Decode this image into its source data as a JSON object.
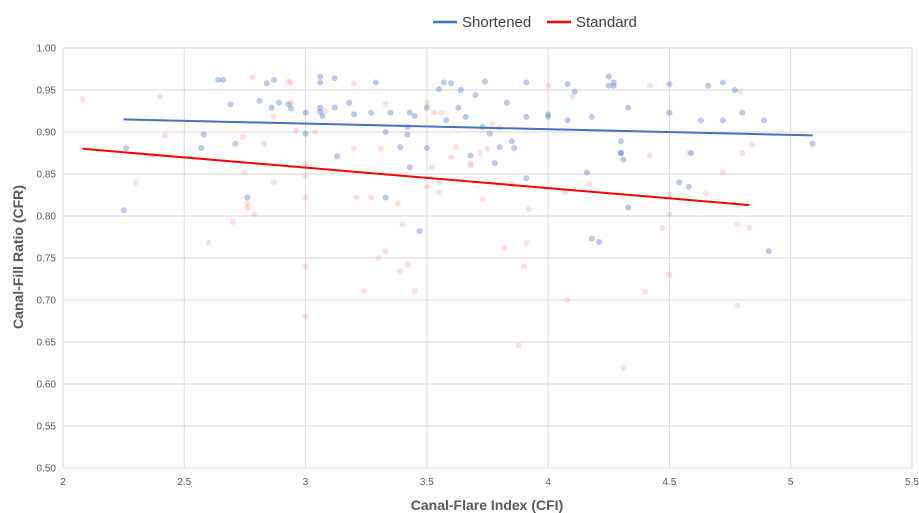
{
  "chart_data": {
    "type": "scatter",
    "title": "",
    "xlabel": "Canal-Flare Index (CFI)",
    "ylabel": "Canal-Fill Ratio (CFR)",
    "xlim": [
      2,
      5.5
    ],
    "ylim": [
      0.5,
      1.0
    ],
    "x_ticks": [
      "2",
      "2.5",
      "3",
      "3.5",
      "4",
      "4.5",
      "5",
      "5.5"
    ],
    "y_ticks": [
      "0.50",
      "0.55",
      "0.60",
      "0.65",
      "0.70",
      "0.75",
      "0.80",
      "0.85",
      "0.90",
      "0.95",
      "1.00"
    ],
    "grid": "vertical-and-horizontal",
    "legend_position": "top-center",
    "series": [
      {
        "name": "Shortened",
        "color": "#4472C4",
        "trendline": {
          "x": [
            2.25,
            5.09
          ],
          "y": [
            0.915,
            0.896
          ]
        },
        "points": [
          [
            2.25,
            0.807
          ],
          [
            2.26,
            0.881
          ],
          [
            2.57,
            0.881
          ],
          [
            2.58,
            0.897
          ],
          [
            2.64,
            0.962
          ],
          [
            2.66,
            0.962
          ],
          [
            2.69,
            0.933
          ],
          [
            2.71,
            0.886
          ],
          [
            2.76,
            0.822
          ],
          [
            2.81,
            0.937
          ],
          [
            2.84,
            0.958
          ],
          [
            2.87,
            0.962
          ],
          [
            2.86,
            0.929
          ],
          [
            2.89,
            0.935
          ],
          [
            2.93,
            0.933
          ],
          [
            2.94,
            0.928
          ],
          [
            3.0,
            0.923
          ],
          [
            3.0,
            0.898
          ],
          [
            3.06,
            0.966
          ],
          [
            3.06,
            0.959
          ],
          [
            3.06,
            0.929
          ],
          [
            3.06,
            0.924
          ],
          [
            3.07,
            0.919
          ],
          [
            3.12,
            0.964
          ],
          [
            3.12,
            0.929
          ],
          [
            3.13,
            0.871
          ],
          [
            3.18,
            0.935
          ],
          [
            3.2,
            0.921
          ],
          [
            3.27,
            0.923
          ],
          [
            3.29,
            0.959
          ],
          [
            3.33,
            0.9
          ],
          [
            3.33,
            0.822
          ],
          [
            3.35,
            0.923
          ],
          [
            3.39,
            0.882
          ],
          [
            3.42,
            0.906
          ],
          [
            3.42,
            0.897
          ],
          [
            3.43,
            0.858
          ],
          [
            3.43,
            0.923
          ],
          [
            3.45,
            0.919
          ],
          [
            3.47,
            0.782
          ],
          [
            3.5,
            0.929
          ],
          [
            3.5,
            0.881
          ],
          [
            3.55,
            0.951
          ],
          [
            3.57,
            0.959
          ],
          [
            3.58,
            0.914
          ],
          [
            3.6,
            0.958
          ],
          [
            3.63,
            0.929
          ],
          [
            3.64,
            0.95
          ],
          [
            3.66,
            0.918
          ],
          [
            3.68,
            0.872
          ],
          [
            3.7,
            0.944
          ],
          [
            3.74,
            0.96
          ],
          [
            3.73,
            0.906
          ],
          [
            3.76,
            0.898
          ],
          [
            3.78,
            0.863
          ],
          [
            3.8,
            0.882
          ],
          [
            3.83,
            0.935
          ],
          [
            3.85,
            0.889
          ],
          [
            3.86,
            0.881
          ],
          [
            3.91,
            0.959
          ],
          [
            3.91,
            0.918
          ],
          [
            3.91,
            0.845
          ],
          [
            4.0,
            0.921
          ],
          [
            4.0,
            0.918
          ],
          [
            4.08,
            0.957
          ],
          [
            4.08,
            0.914
          ],
          [
            4.11,
            0.948
          ],
          [
            4.16,
            0.852
          ],
          [
            4.18,
            0.918
          ],
          [
            4.18,
            0.773
          ],
          [
            4.21,
            0.769
          ],
          [
            4.25,
            0.966
          ],
          [
            4.25,
            0.955
          ],
          [
            4.27,
            0.959
          ],
          [
            4.27,
            0.955
          ],
          [
            4.3,
            0.889
          ],
          [
            4.3,
            0.875
          ],
          [
            4.3,
            0.875
          ],
          [
            4.31,
            0.867
          ],
          [
            4.33,
            0.929
          ],
          [
            4.33,
            0.81
          ],
          [
            4.5,
            0.957
          ],
          [
            4.5,
            0.923
          ],
          [
            4.54,
            0.84
          ],
          [
            4.58,
            0.835
          ],
          [
            4.59,
            0.875
          ],
          [
            4.63,
            0.914
          ],
          [
            4.66,
            0.955
          ],
          [
            4.72,
            0.959
          ],
          [
            4.72,
            0.914
          ],
          [
            4.77,
            0.95
          ],
          [
            4.8,
            0.923
          ],
          [
            4.89,
            0.914
          ],
          [
            4.91,
            0.758
          ],
          [
            5.09,
            0.886
          ]
        ]
      },
      {
        "name": "Standard",
        "color": "#FF0000",
        "trendline": {
          "x": [
            2.08,
            4.83
          ],
          "y": [
            0.88,
            0.813
          ]
        },
        "points": [
          [
            2.08,
            0.939
          ],
          [
            2.3,
            0.84
          ],
          [
            2.37,
            0.872
          ],
          [
            2.4,
            0.942
          ],
          [
            2.42,
            0.896
          ],
          [
            2.6,
            0.768
          ],
          [
            2.7,
            0.793
          ],
          [
            2.74,
            0.894
          ],
          [
            2.75,
            0.852
          ],
          [
            2.76,
            0.81
          ],
          [
            2.76,
            0.815
          ],
          [
            2.78,
            0.965
          ],
          [
            2.79,
            0.802
          ],
          [
            2.83,
            0.886
          ],
          [
            2.87,
            0.918
          ],
          [
            2.87,
            0.84
          ],
          [
            2.93,
            0.96
          ],
          [
            2.94,
            0.958
          ],
          [
            2.94,
            0.935
          ],
          [
            2.96,
            0.902
          ],
          [
            3.0,
            0.862
          ],
          [
            3.0,
            0.848
          ],
          [
            3.0,
            0.822
          ],
          [
            3.0,
            0.74
          ],
          [
            3.0,
            0.68
          ],
          [
            3.04,
            0.9
          ],
          [
            3.08,
            0.925
          ],
          [
            3.2,
            0.958
          ],
          [
            3.2,
            0.88
          ],
          [
            3.21,
            0.822
          ],
          [
            3.24,
            0.711
          ],
          [
            3.27,
            0.822
          ],
          [
            3.3,
            0.75
          ],
          [
            3.31,
            0.88
          ],
          [
            3.33,
            0.934
          ],
          [
            3.33,
            0.758
          ],
          [
            3.38,
            0.815
          ],
          [
            3.39,
            0.734
          ],
          [
            3.4,
            0.79
          ],
          [
            3.42,
            0.742
          ],
          [
            3.45,
            0.711
          ],
          [
            3.5,
            0.935
          ],
          [
            3.5,
            0.835
          ],
          [
            3.52,
            0.858
          ],
          [
            3.53,
            0.923
          ],
          [
            3.55,
            0.84
          ],
          [
            3.55,
            0.828
          ],
          [
            3.56,
            0.923
          ],
          [
            3.6,
            0.87
          ],
          [
            3.62,
            0.882
          ],
          [
            3.68,
            0.86
          ],
          [
            3.68,
            0.862
          ],
          [
            3.72,
            0.875
          ],
          [
            3.73,
            0.82
          ],
          [
            3.75,
            0.88
          ],
          [
            3.77,
            0.91
          ],
          [
            3.8,
            0.905
          ],
          [
            3.82,
            0.762
          ],
          [
            3.85,
            0.838
          ],
          [
            3.88,
            0.646
          ],
          [
            3.9,
            0.74
          ],
          [
            3.91,
            0.768
          ],
          [
            3.92,
            0.808
          ],
          [
            4.0,
            0.955
          ],
          [
            4.07,
            0.828
          ],
          [
            4.08,
            0.7
          ],
          [
            4.1,
            0.942
          ],
          [
            4.17,
            0.838
          ],
          [
            4.31,
            0.62
          ],
          [
            4.4,
            0.71
          ],
          [
            4.42,
            0.872
          ],
          [
            4.42,
            0.955
          ],
          [
            4.47,
            0.786
          ],
          [
            4.5,
            0.802
          ],
          [
            4.5,
            0.826
          ],
          [
            4.5,
            0.73
          ],
          [
            4.58,
            0.875
          ],
          [
            4.65,
            0.827
          ],
          [
            4.72,
            0.852
          ],
          [
            4.78,
            0.693
          ],
          [
            4.78,
            0.79
          ],
          [
            4.79,
            0.948
          ],
          [
            4.8,
            0.875
          ],
          [
            4.83,
            0.786
          ],
          [
            4.84,
            0.885
          ]
        ]
      }
    ]
  }
}
